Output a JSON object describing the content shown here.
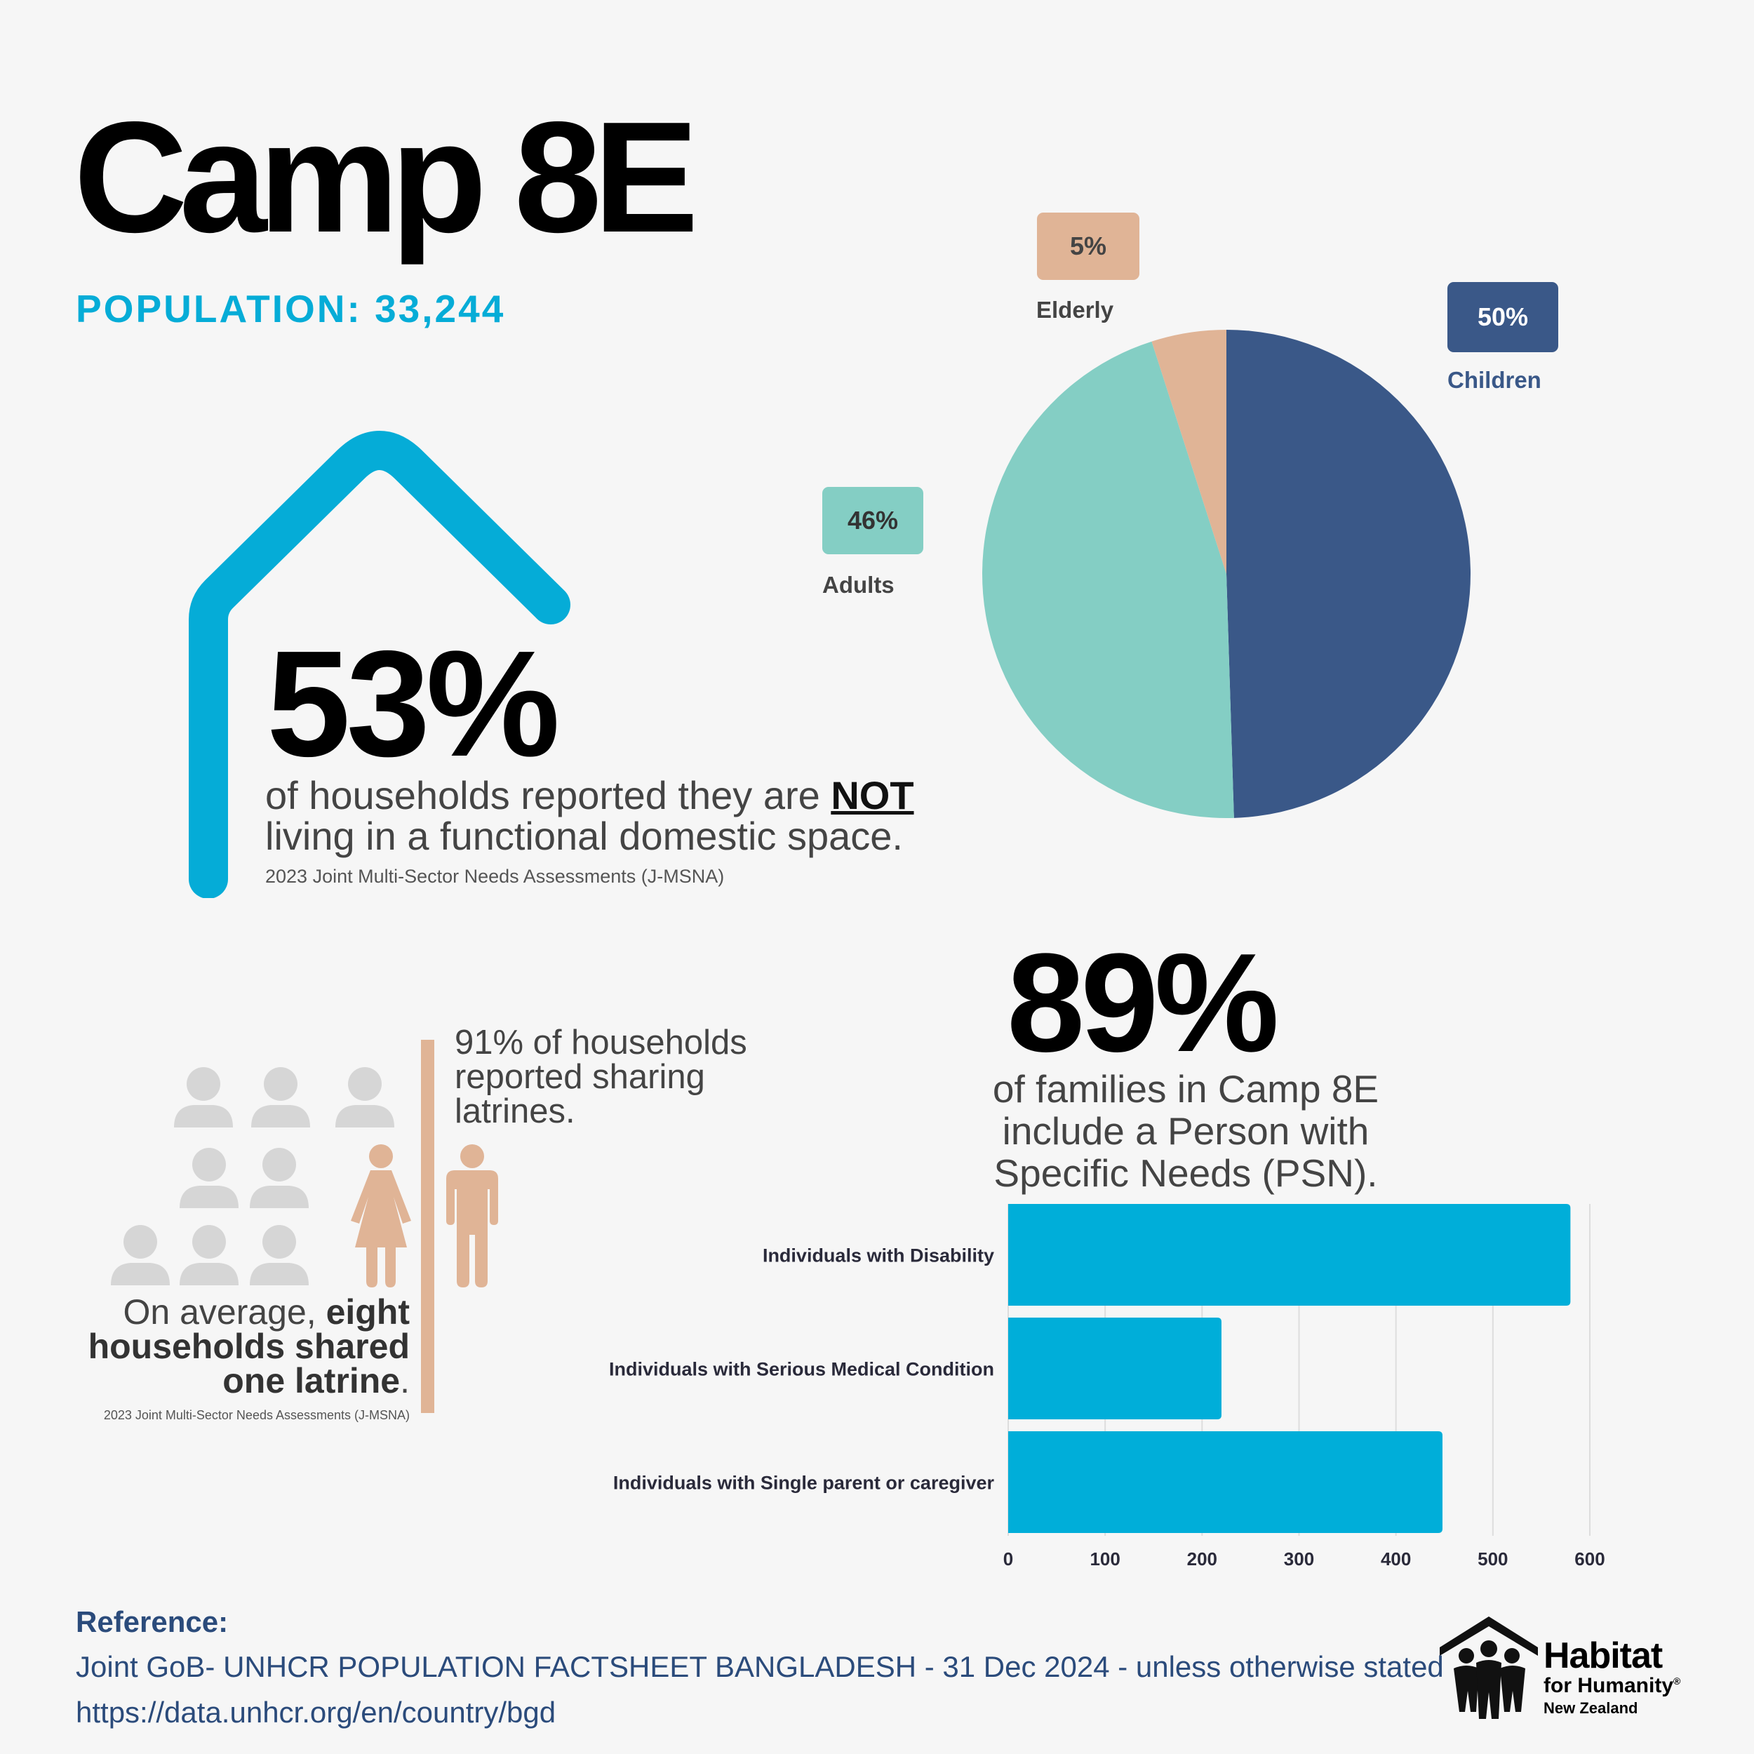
{
  "header": {
    "title": "Camp 8E",
    "population": "POPULATION: 33,244"
  },
  "stat_households": {
    "value": "53%",
    "text_before": "of households reported they are ",
    "text_emphasis": "NOT",
    "text_after": " living in a functional domestic space.",
    "source": "2023 Joint Multi-Sector Needs Assessments (J-MSNA)"
  },
  "latrines": {
    "caption": "91% of households reported sharing latrines.",
    "summary_prefix": "On average, ",
    "summary_bold": "eight households shared one latrine",
    "summary_suffix": ".",
    "source": "2023 Joint Multi-Sector Needs Assessments (J-MSNA)"
  },
  "stat_psn": {
    "value": "89%",
    "text": "of families in Camp 8E include a Person with Specific Needs (PSN)."
  },
  "reference": {
    "heading": "Reference:",
    "line1": "Joint GoB- UNHCR POPULATION FACTSHEET BANGLADESH - 31 Dec 2024 - unless otherwise stated",
    "line2": "https://data.unhcr.org/en/country/bgd"
  },
  "logo": {
    "line1": "Habitat",
    "line2": "for Humanity",
    "line3": "New Zealand",
    "mark": "®"
  },
  "colors": {
    "accent": "#05acd7",
    "children": "#3a5888",
    "adults": "#84cec4",
    "elderly": "#e0b496",
    "bar": "#00aed9",
    "person_highlight": "#e0b496",
    "person_muted": "#d6d6d6"
  },
  "icons": [
    "house-outline-icon",
    "person-icon",
    "woman-icon",
    "man-icon",
    "habitat-logo-icon"
  ],
  "chart_data": [
    {
      "type": "pie",
      "slices": [
        {
          "label": "Children",
          "value": 50,
          "display": "50%"
        },
        {
          "label": "Adults",
          "value": 46,
          "display": "46%"
        },
        {
          "label": "Elderly",
          "value": 5,
          "display": "5%"
        }
      ]
    },
    {
      "type": "bar",
      "orientation": "horizontal",
      "categories": [
        "Individuals with Disability",
        "Individuals with Serious Medical Condition",
        "Individuals with Single parent or caregiver"
      ],
      "values": [
        580,
        220,
        448
      ],
      "xlim": [
        0,
        600
      ],
      "ticks": [
        "0",
        "100",
        "200",
        "300",
        "400",
        "500",
        "600"
      ],
      "grid": true
    }
  ]
}
